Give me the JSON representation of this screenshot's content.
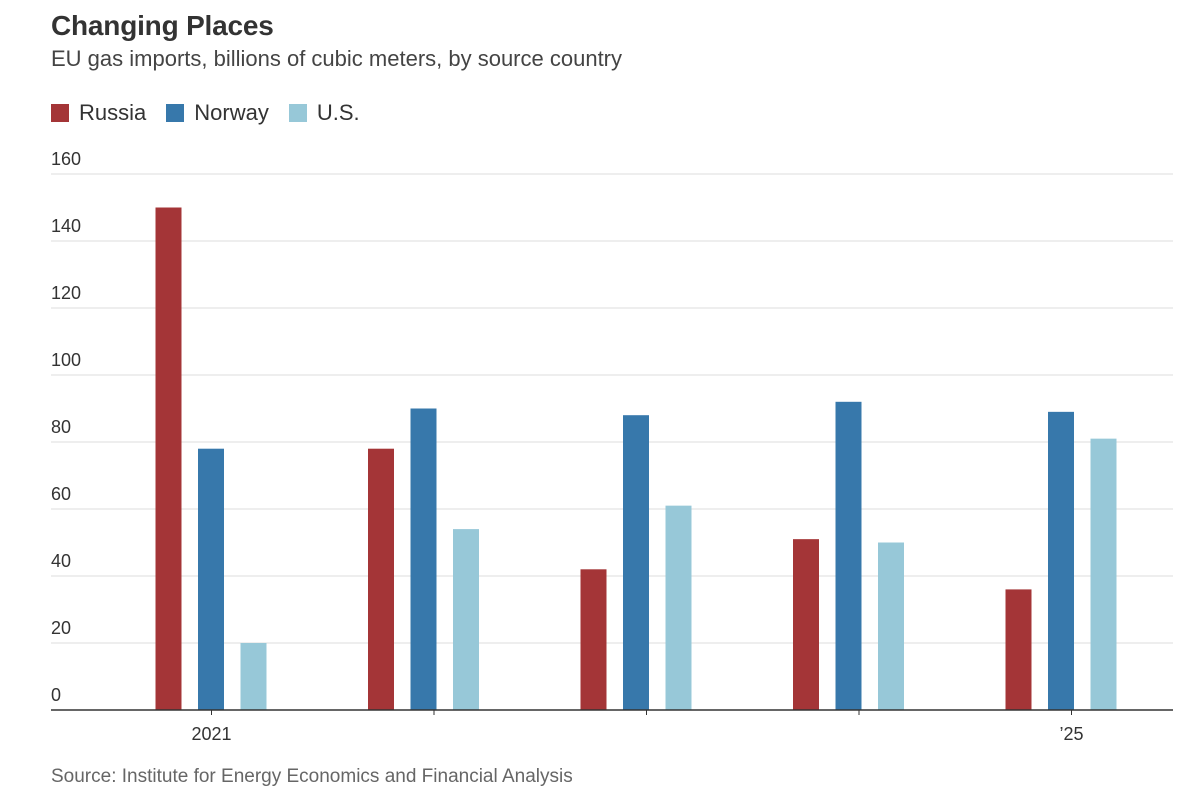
{
  "chart_data": {
    "type": "bar",
    "title": "Changing Places",
    "subtitle": "EU gas imports, billions of cubic meters, by source country",
    "categories": [
      "2021",
      "",
      "",
      "",
      "’25"
    ],
    "series": [
      {
        "name": "Russia",
        "color": "#a43537",
        "values": [
          150,
          78,
          42,
          51,
          36
        ]
      },
      {
        "name": "Norway",
        "color": "#3778ab",
        "values": [
          78,
          90,
          88,
          92,
          89
        ]
      },
      {
        "name": "U.S.",
        "color": "#97c8d8",
        "values": [
          20,
          54,
          61,
          50,
          81
        ]
      }
    ],
    "ylim": [
      0,
      160
    ],
    "yticks": [
      0,
      20,
      40,
      60,
      80,
      100,
      120,
      140,
      160
    ],
    "grid": true,
    "legend": "top-left",
    "source": "Source: Institute for Energy Economics and Financial Analysis"
  }
}
